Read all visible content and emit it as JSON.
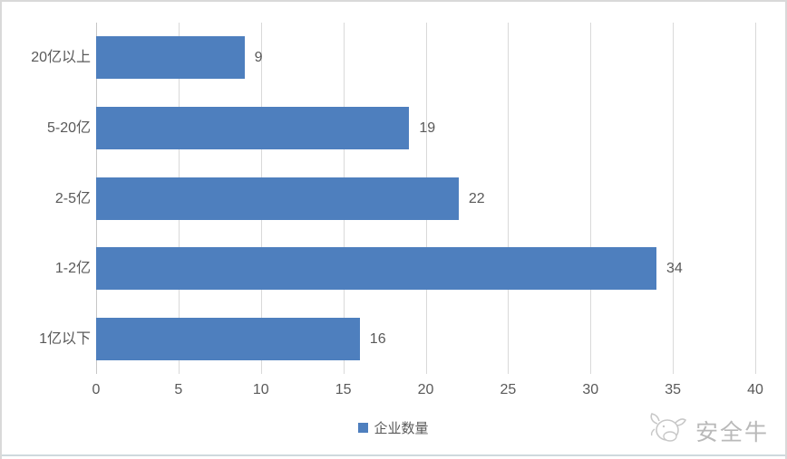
{
  "chart_data": {
    "type": "bar",
    "orientation": "horizontal",
    "title": "",
    "categories": [
      "20亿以上",
      "5-20亿",
      "2-5亿",
      "1-2亿",
      "1亿以下"
    ],
    "values": [
      9,
      19,
      22,
      34,
      16
    ],
    "series_name": "企业数量",
    "xlabel": "",
    "ylabel": "",
    "xlim": [
      0,
      40
    ],
    "xticks": [
      0,
      5,
      10,
      15,
      20,
      25,
      30,
      35,
      40
    ],
    "grid": true,
    "legend_position": "bottom",
    "bar_color": "#4e7fbe"
  },
  "legend": {
    "label": "企业数量"
  },
  "watermark": {
    "text": "安全牛",
    "icon": "bull-logo-icon"
  },
  "colors": {
    "bar": "#4e7fbe",
    "grid": "#d9d9d9",
    "text": "#595959",
    "border": "#d9d9d9",
    "watermark": "#b9b9b9"
  }
}
